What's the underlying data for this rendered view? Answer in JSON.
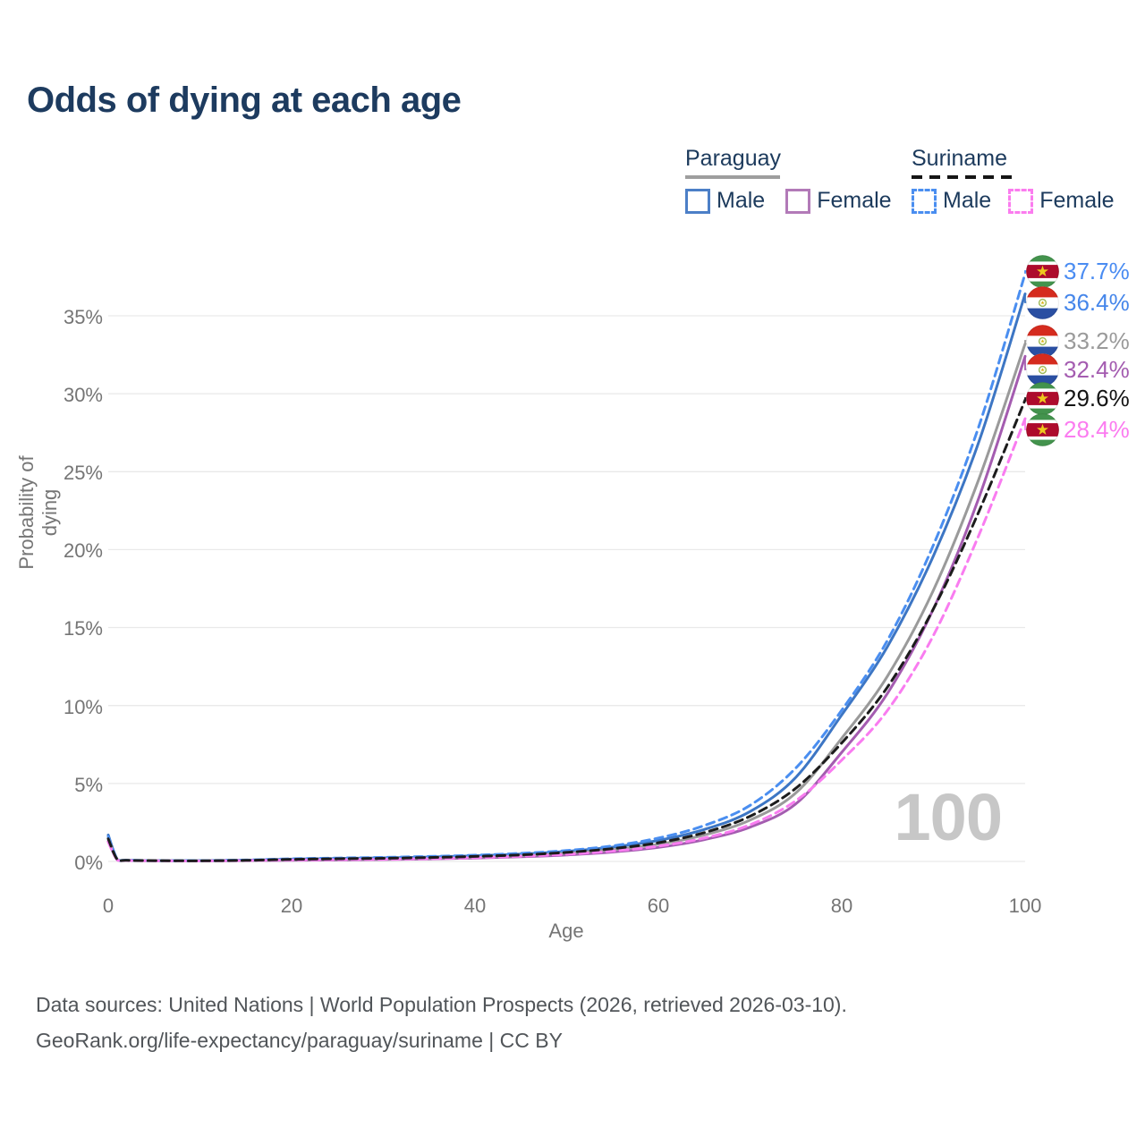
{
  "title": "Odds of dying at each age",
  "legend": {
    "groups": [
      {
        "country": "Paraguay",
        "line_style": "solid",
        "items": [
          {
            "label": "Male",
            "color": "#4c7fc7"
          },
          {
            "label": "Female",
            "color": "#b27ab8"
          }
        ]
      },
      {
        "country": "Suriname",
        "line_style": "dashed",
        "items": [
          {
            "label": "Male",
            "color": "#4a8ef0"
          },
          {
            "label": "Female",
            "color": "#fb7cef"
          }
        ]
      }
    ]
  },
  "chart_data": {
    "type": "line",
    "title": "Odds of dying at each age",
    "xlabel": "Age",
    "ylabel": "Probability of dying",
    "x_ticks": [
      "0",
      "20",
      "40",
      "60",
      "80",
      "100"
    ],
    "y_ticks": [
      "0%",
      "5%",
      "10%",
      "15%",
      "20%",
      "25%",
      "30%",
      "35%"
    ],
    "xlim": [
      0,
      100
    ],
    "ylim": [
      0,
      38.5
    ],
    "grid": "horizontal",
    "legend_position": "top-right",
    "watermark": "100",
    "ages": [
      0,
      1,
      2,
      5,
      10,
      15,
      20,
      25,
      30,
      35,
      40,
      45,
      50,
      55,
      60,
      65,
      70,
      75,
      80,
      85,
      90,
      95,
      100
    ],
    "series": [
      {
        "name": "Suriname Male",
        "country": "suriname",
        "color": "#4a8ef0",
        "label_color": "#4a8cf2",
        "dash": true,
        "end_label": "37.7%",
        "values": [
          1.6,
          0.12,
          0.08,
          0.05,
          0.05,
          0.09,
          0.17,
          0.22,
          0.26,
          0.32,
          0.4,
          0.52,
          0.7,
          1.0,
          1.5,
          2.3,
          3.6,
          6.0,
          9.7,
          14.2,
          20.3,
          28.0,
          37.7
        ]
      },
      {
        "name": "Paraguay Male",
        "country": "paraguay",
        "color": "#3d76c4",
        "label_color": "#4586ea",
        "dash": false,
        "end_label": "36.4%",
        "values": [
          1.7,
          0.12,
          0.08,
          0.05,
          0.05,
          0.08,
          0.15,
          0.19,
          0.23,
          0.28,
          0.36,
          0.47,
          0.65,
          0.92,
          1.35,
          2.05,
          3.2,
          5.4,
          9.4,
          13.8,
          19.6,
          27.0,
          36.4
        ]
      },
      {
        "name": "Paraguay",
        "country": "paraguay",
        "color": "#9a9a9a",
        "label_color": "#9a9a9a",
        "dash": false,
        "end_label": "33.2%",
        "values": [
          1.5,
          0.1,
          0.07,
          0.04,
          0.04,
          0.06,
          0.11,
          0.14,
          0.17,
          0.21,
          0.28,
          0.38,
          0.53,
          0.75,
          1.1,
          1.7,
          2.65,
          4.4,
          7.9,
          11.9,
          17.4,
          24.6,
          33.2
        ]
      },
      {
        "name": "Paraguay Female",
        "country": "paraguay",
        "color": "#a45cb0",
        "label_color": "#a45cb0",
        "dash": false,
        "end_label": "32.4%",
        "values": [
          1.3,
          0.09,
          0.06,
          0.04,
          0.03,
          0.05,
          0.07,
          0.09,
          0.12,
          0.16,
          0.22,
          0.3,
          0.42,
          0.6,
          0.9,
          1.4,
          2.2,
          3.7,
          7.0,
          10.8,
          16.2,
          23.4,
          32.4
        ]
      },
      {
        "name": "Suriname",
        "country": "suriname",
        "color": "#1c1c1c",
        "label_color": "#141414",
        "dash": true,
        "end_label": "29.6%",
        "values": [
          1.45,
          0.11,
          0.07,
          0.05,
          0.04,
          0.07,
          0.13,
          0.17,
          0.2,
          0.25,
          0.32,
          0.42,
          0.58,
          0.82,
          1.2,
          1.85,
          2.9,
          4.7,
          7.6,
          11.2,
          16.2,
          22.5,
          29.6
        ]
      },
      {
        "name": "Suriname Female",
        "country": "suriname",
        "color": "#f97cf0",
        "label_color": "#fb7cf0",
        "dash": true,
        "end_label": "28.4%",
        "values": [
          1.25,
          0.09,
          0.06,
          0.04,
          0.03,
          0.06,
          0.09,
          0.11,
          0.14,
          0.18,
          0.24,
          0.33,
          0.46,
          0.66,
          0.98,
          1.5,
          2.35,
          3.9,
          6.5,
          9.7,
          14.5,
          21.0,
          28.4
        ]
      }
    ]
  },
  "footer": {
    "line1": "Data sources: United Nations | World Population Prospects (2026, retrieved 2026-03-10).",
    "line2": "GeoRank.org/life-expectancy/paraguay/suriname | CC BY"
  }
}
